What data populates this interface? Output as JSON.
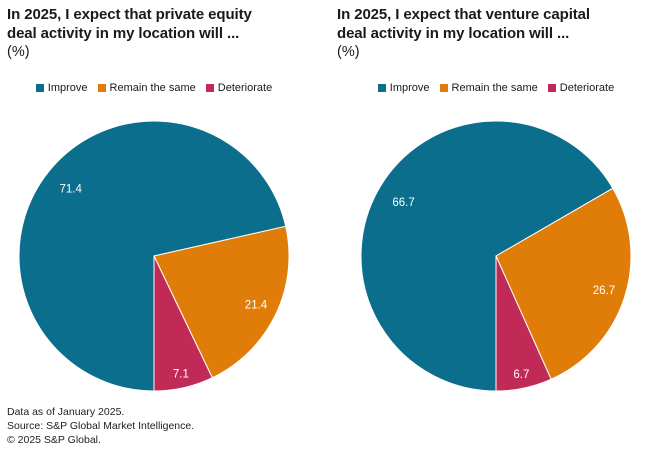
{
  "chart_data": [
    {
      "type": "pie",
      "title": "In 2025, I expect that private equity\ndeal activity in my location will ...",
      "unit": "(%)",
      "categories": [
        "Improve",
        "Remain the same",
        "Deteriorate"
      ],
      "values": [
        71.4,
        21.4,
        7.1
      ],
      "labels": [
        "71.4",
        "21.4",
        "7.1"
      ],
      "colors": [
        "#0A6E8C",
        "#DF7D08",
        "#C12A57"
      ],
      "label_color": "#FFFFFF",
      "start_angle_deg": 180,
      "direction": "clockwise",
      "legend_position": "top"
    },
    {
      "type": "pie",
      "title": "In 2025, I expect that venture capital\ndeal activity in my location will ...",
      "unit": "(%)",
      "categories": [
        "Improve",
        "Remain the same",
        "Deteriorate"
      ],
      "values": [
        66.7,
        26.7,
        6.7
      ],
      "labels": [
        "66.7",
        "26.7",
        "6.7"
      ],
      "colors": [
        "#0A6E8C",
        "#DF7D08",
        "#C12A57"
      ],
      "label_color": "#FFFFFF",
      "start_angle_deg": 180,
      "direction": "clockwise",
      "legend_position": "top"
    }
  ],
  "footer": {
    "data_as_of": "Data as of January 2025.",
    "source": "Source: S&P Global Market Intelligence.",
    "copyright": "© 2025 S&P Global."
  }
}
